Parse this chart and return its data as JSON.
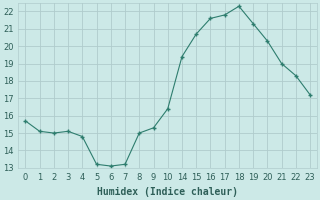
{
  "x_labels": [
    "0",
    "1",
    "2",
    "3",
    "4",
    "5",
    "6",
    "7",
    "8",
    "9",
    "10",
    "14",
    "15",
    "16",
    "17",
    "18",
    "19",
    "20",
    "21",
    "22",
    "23"
  ],
  "y": [
    15.7,
    15.1,
    15.0,
    15.1,
    14.8,
    13.2,
    13.1,
    13.2,
    15.0,
    15.3,
    16.4,
    19.4,
    20.7,
    21.6,
    21.8,
    22.3,
    21.3,
    20.3,
    19.0,
    18.3,
    17.2
  ],
  "line_color": "#2e7d6e",
  "marker_color": "#2e7d6e",
  "bg_color": "#cce9e7",
  "grid_color": "#b0cccc",
  "tick_color": "#2e5f58",
  "xlabel": "Humidex (Indice chaleur)",
  "ylim": [
    13,
    22.5
  ],
  "yticks": [
    13,
    14,
    15,
    16,
    17,
    18,
    19,
    20,
    21,
    22
  ],
  "xlabel_fontsize": 7,
  "tick_fontsize": 6
}
